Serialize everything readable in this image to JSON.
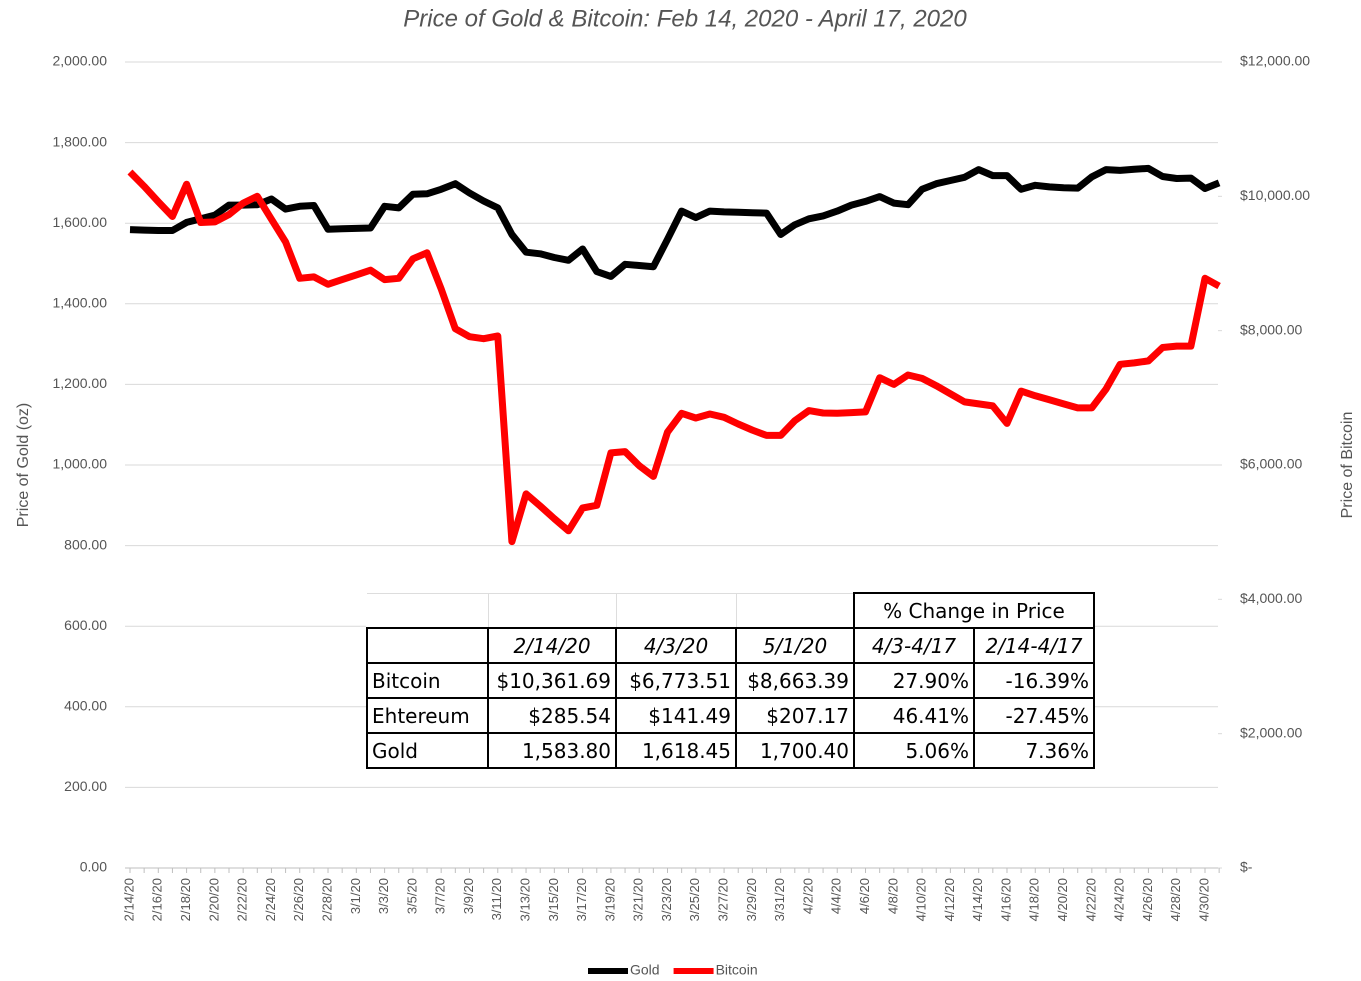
{
  "chart_data": {
    "type": "line",
    "title": "Price of Gold & Bitcoin: Feb 14, 2020 - April 17, 2020",
    "ylabel": "Price of Gold (oz)",
    "y2label": "Price of Bitcoin",
    "categories": [
      "2/14/20",
      null,
      "2/16/20",
      null,
      "2/18/20",
      null,
      "2/20/20",
      null,
      "2/22/20",
      null,
      "2/24/20",
      null,
      "2/26/20",
      null,
      "2/28/20",
      null,
      "3/1/20",
      null,
      "3/3/20",
      null,
      "3/5/20",
      null,
      "3/7/20",
      null,
      "3/9/20",
      null,
      "3/11/20",
      null,
      "3/13/20",
      null,
      "3/15/20",
      null,
      "3/17/20",
      null,
      "3/19/20",
      null,
      "3/21/20",
      null,
      "3/23/20",
      null,
      "3/25/20",
      null,
      "3/27/20",
      null,
      "3/29/20",
      null,
      "3/31/20",
      null,
      "4/2/20",
      null,
      "4/4/20",
      null,
      "4/6/20",
      null,
      "4/8/20",
      null,
      "4/10/20",
      null,
      "4/12/20",
      null,
      "4/14/20",
      null,
      "4/16/20",
      null,
      "4/18/20",
      null,
      "4/20/20",
      null,
      "4/22/20",
      null,
      "4/24/20",
      null,
      "4/26/20",
      null,
      "4/28/20",
      null,
      "4/30/20",
      null
    ],
    "series": [
      {
        "name": "Gold",
        "color": "#000000",
        "axis": "y",
        "values": [
          1584,
          1583,
          1582,
          1582,
          1602,
          1611,
          1620,
          1645,
          1645,
          1646,
          1660,
          1635,
          1642,
          1644,
          1585,
          1586,
          1587,
          1588,
          1642,
          1638,
          1672,
          1673,
          1684,
          1698,
          1675,
          1655,
          1638,
          1572,
          1528,
          1524,
          1515,
          1508,
          1536,
          1480,
          1468,
          1498,
          1495,
          1492,
          1560,
          1630,
          1614,
          1630,
          1628,
          1627,
          1626,
          1625,
          1572,
          1596,
          1611,
          1618,
          1630,
          1645,
          1654,
          1666,
          1650,
          1646,
          1684,
          1698,
          1706,
          1714,
          1733,
          1718,
          1718,
          1684,
          1694,
          1690,
          1688,
          1687,
          1715,
          1733,
          1731,
          1734,
          1736,
          1716,
          1711,
          1712,
          1686,
          1700
        ]
      },
      {
        "name": "Bitcoin",
        "color": "#ff0000",
        "axis": "y2",
        "values": [
          10362,
          10150,
          9920,
          9700,
          10180,
          9610,
          9620,
          9730,
          9900,
          10000,
          9660,
          9320,
          8780,
          8800,
          8690,
          8760,
          8830,
          8900,
          8760,
          8780,
          9070,
          9160,
          8620,
          8030,
          7910,
          7880,
          7920,
          4860,
          5570,
          5390,
          5200,
          5020,
          5360,
          5400,
          6180,
          6200,
          5990,
          5830,
          6490,
          6770,
          6700,
          6760,
          6710,
          6610,
          6520,
          6440,
          6440,
          6660,
          6810,
          6774,
          6770,
          6780,
          6790,
          7300,
          7200,
          7340,
          7290,
          7180,
          7060,
          6940,
          6910,
          6880,
          6620,
          7100,
          7030,
          6970,
          6910,
          6850,
          6850,
          7130,
          7500,
          7520,
          7550,
          7750,
          7770,
          7770,
          8780,
          8663
        ]
      }
    ],
    "ylim": [
      0,
      2000
    ],
    "yticks": [
      {
        "value": 0,
        "label": "0.00"
      },
      {
        "value": 200,
        "label": "200.00"
      },
      {
        "value": 400,
        "label": "400.00"
      },
      {
        "value": 600,
        "label": "600.00"
      },
      {
        "value": 800,
        "label": "800.00"
      },
      {
        "value": 1000,
        "label": "1,000.00"
      },
      {
        "value": 1200,
        "label": "1,200.00"
      },
      {
        "value": 1400,
        "label": "1,400.00"
      },
      {
        "value": 1600,
        "label": "1,600.00"
      },
      {
        "value": 1800,
        "label": "1,800.00"
      },
      {
        "value": 2000,
        "label": "2,000.00"
      }
    ],
    "y2lim": [
      0,
      12000
    ],
    "y2ticks": [
      {
        "value": 0,
        "label": "$-"
      },
      {
        "value": 2000,
        "label": "$2,000.00"
      },
      {
        "value": 4000,
        "label": "$4,000.00"
      },
      {
        "value": 6000,
        "label": "$6,000.00"
      },
      {
        "value": 8000,
        "label": "$8,000.00"
      },
      {
        "value": 10000,
        "label": "$10,000.00"
      },
      {
        "value": 12000,
        "label": "$12,000.00"
      }
    ],
    "grid": true,
    "legend": "bottom"
  },
  "table": {
    "group_header": "% Change in Price",
    "columns": [
      "2/14/20",
      "4/3/20",
      "5/1/20",
      "4/3-4/17",
      "2/14-4/17"
    ],
    "rows": [
      [
        "Bitcoin",
        "$10,361.69",
        "$6,773.51",
        "$8,663.39",
        "27.90%",
        "-16.39%"
      ],
      [
        "Ehtereum",
        "$285.54",
        "$141.49",
        "$207.17",
        "46.41%",
        "-27.45%"
      ],
      [
        "Gold",
        "1,583.80",
        "1,618.45",
        "1,700.40",
        "5.06%",
        "7.36%"
      ]
    ]
  }
}
